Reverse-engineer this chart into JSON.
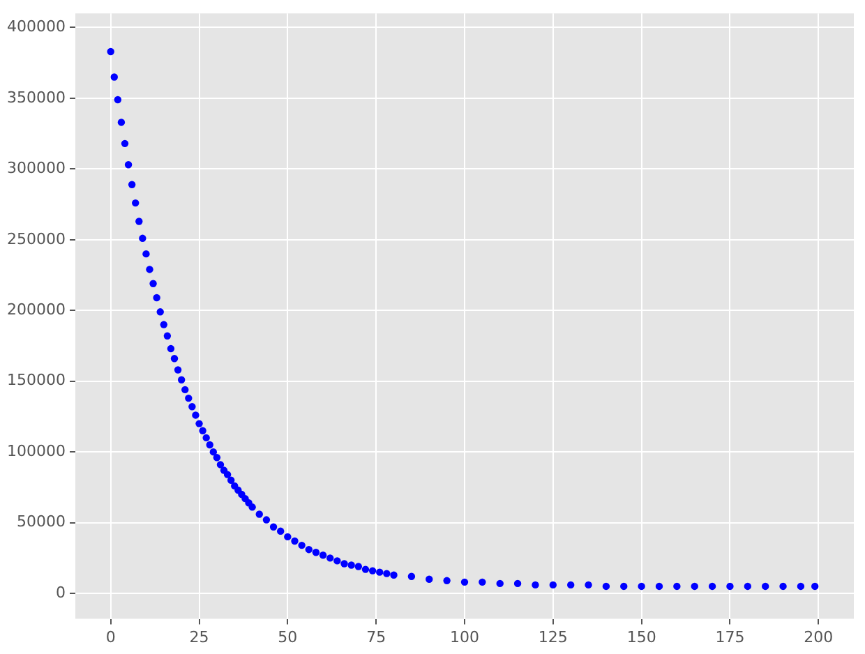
{
  "chart_data": {
    "type": "scatter",
    "marker": "circle",
    "grid": true,
    "legend": false,
    "xlim": [
      -10,
      210
    ],
    "xticks": [
      0,
      25,
      50,
      75,
      100,
      125,
      150,
      175,
      200
    ],
    "ylim": [
      -18000,
      410000
    ],
    "yticks": [
      0,
      50000,
      100000,
      150000,
      200000,
      250000,
      300000,
      350000,
      400000
    ],
    "x": [
      0,
      1,
      2,
      3,
      4,
      5,
      6,
      7,
      8,
      9,
      10,
      11,
      12,
      13,
      14,
      15,
      16,
      17,
      18,
      19,
      20,
      21,
      22,
      23,
      24,
      25,
      26,
      27,
      28,
      29,
      30,
      31,
      32,
      33,
      34,
      35,
      36,
      37,
      38,
      39,
      40,
      42,
      44,
      46,
      48,
      50,
      52,
      54,
      56,
      58,
      60,
      62,
      64,
      66,
      68,
      70,
      72,
      74,
      76,
      78,
      80,
      85,
      90,
      95,
      100,
      105,
      110,
      115,
      120,
      125,
      130,
      135,
      140,
      145,
      150,
      155,
      160,
      165,
      170,
      175,
      180,
      185,
      190,
      195,
      199
    ],
    "series": [
      {
        "color": "#0000ff",
        "values": [
          383000,
          365000,
          349000,
          333000,
          318000,
          303000,
          289000,
          276000,
          263000,
          251000,
          240000,
          229000,
          219000,
          209000,
          199000,
          190000,
          182000,
          173000,
          166000,
          158000,
          151000,
          144000,
          138000,
          132000,
          126000,
          120000,
          115000,
          110000,
          105000,
          100000,
          96000,
          91000,
          87000,
          84000,
          80000,
          76000,
          73000,
          70000,
          67000,
          64000,
          61000,
          56000,
          52000,
          47000,
          44000,
          40000,
          37000,
          34000,
          31000,
          29000,
          27000,
          25000,
          23000,
          21000,
          20000,
          19000,
          17000,
          16000,
          15000,
          14000,
          13000,
          12000,
          10000,
          9000,
          8000,
          8000,
          7000,
          7000,
          6000,
          6000,
          6000,
          6000,
          5000,
          5000,
          5000,
          5000,
          5000,
          5000,
          5000,
          5000,
          5000,
          5000,
          5000,
          5000,
          5000
        ]
      }
    ]
  }
}
